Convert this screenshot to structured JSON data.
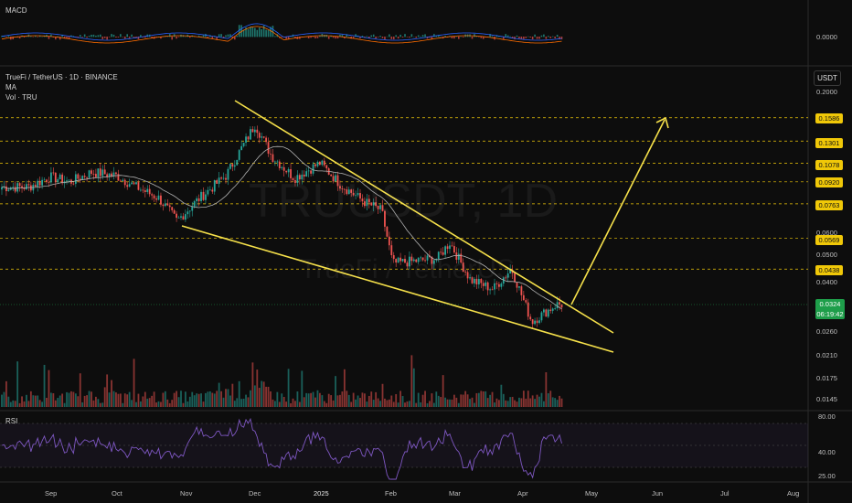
{
  "header": {
    "macd_label": "MACD",
    "symbol_line": "TrueFi / TetherUS · 1D · BINANCE",
    "ma_label": "MA",
    "vol_label": "Vol · TRU",
    "rsi_label": "RSI"
  },
  "watermark": {
    "ticker": "TRUUSDT, 1D",
    "name": "TrueFi / TetherUS"
  },
  "price_axis": {
    "unit": "USDT",
    "ticks": [
      "0.2000",
      "0.0600",
      "0.0500",
      "0.0400",
      "0.0260",
      "0.0210",
      "0.0175",
      "0.0145"
    ],
    "highlighted_levels": [
      "0.1586",
      "0.1301",
      "0.1078",
      "0.0920",
      "0.0763",
      "0.0569",
      "0.0438"
    ],
    "last_price": "0.0324",
    "countdown": "06:19:42"
  },
  "macd_axis": {
    "value": "0.0000"
  },
  "rsi_axis": {
    "ticks": [
      "80.00",
      "40.00",
      "25.00"
    ]
  },
  "time_axis": [
    "Sep",
    "Oct",
    "Nov",
    "Dec",
    "2025",
    "Feb",
    "Mar",
    "Apr",
    "May",
    "Jun",
    "Jul",
    "Aug"
  ],
  "colors": {
    "background": "#0d0d0d",
    "up": "#26a69a",
    "down": "#ef5350",
    "level_lines": "#f0c808",
    "pattern_lines": "#f5e04a",
    "ma": "#b0b0b0",
    "rsi": "#7e57c2",
    "last_price": "#1e9e4a"
  },
  "chart_data": {
    "type": "candlestick",
    "symbol": "TRUUSDT",
    "interval": "1D",
    "exchange": "BINANCE",
    "y_scale": "log",
    "key_levels": [
      0.1586,
      0.1301,
      0.1078,
      0.092,
      0.0763,
      0.0569,
      0.0438
    ],
    "last_price": 0.0324,
    "price_path": [
      {
        "x": "Aug 20",
        "y": 0.088
      },
      {
        "x": "Sep 1",
        "y": 0.096
      },
      {
        "x": "Sep 10",
        "y": 0.092
      },
      {
        "x": "Sep 20",
        "y": 0.1
      },
      {
        "x": "Oct 1",
        "y": 0.097
      },
      {
        "x": "Oct 10",
        "y": 0.088
      },
      {
        "x": "Oct 20",
        "y": 0.08
      },
      {
        "x": "Oct 28",
        "y": 0.066
      },
      {
        "x": "Nov 8",
        "y": 0.08
      },
      {
        "x": "Nov 20",
        "y": 0.097
      },
      {
        "x": "Dec 3",
        "y": 0.15
      },
      {
        "x": "Dec 10",
        "y": 0.115
      },
      {
        "x": "Dec 20",
        "y": 0.095
      },
      {
        "x": "Jan 1",
        "y": 0.108
      },
      {
        "x": "Jan 10",
        "y": 0.09
      },
      {
        "x": "Jan 20",
        "y": 0.078
      },
      {
        "x": "Jan 28",
        "y": 0.072
      },
      {
        "x": "Feb 3",
        "y": 0.046
      },
      {
        "x": "Feb 15",
        "y": 0.047
      },
      {
        "x": "Feb 25",
        "y": 0.048
      },
      {
        "x": "Mar 1",
        "y": 0.055
      },
      {
        "x": "Mar 10",
        "y": 0.04
      },
      {
        "x": "Mar 20",
        "y": 0.037
      },
      {
        "x": "Mar 28",
        "y": 0.044
      },
      {
        "x": "Apr 7",
        "y": 0.028
      },
      {
        "x": "Apr 18",
        "y": 0.0324
      }
    ]
  }
}
